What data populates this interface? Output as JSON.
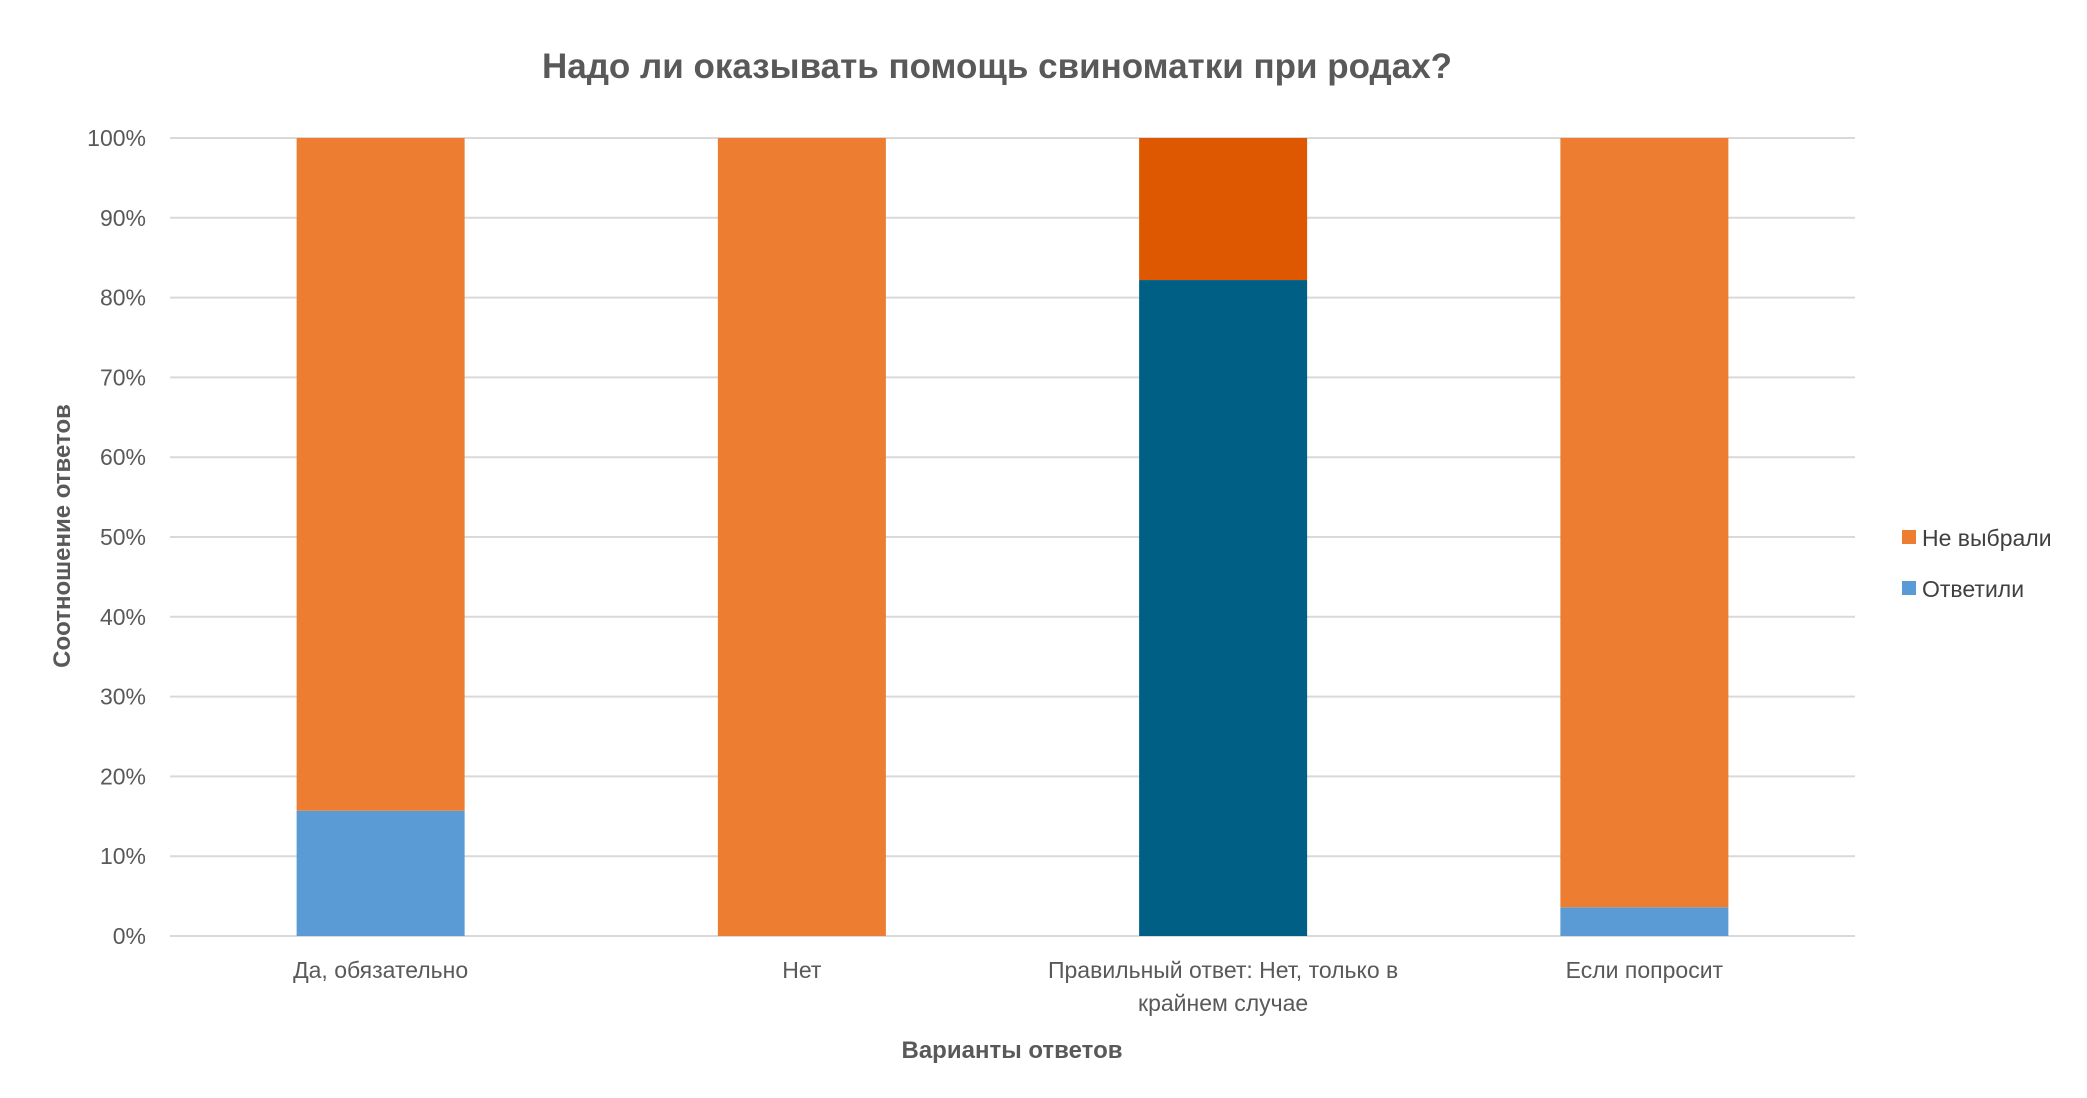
{
  "chart_data": {
    "type": "bar",
    "stacked": true,
    "title": "Надо ли оказывать помощь свиноматки при родах?",
    "xlabel": "Варианты ответов",
    "ylabel": "Соотношение ответов",
    "ylim": [
      0,
      100
    ],
    "y_unit": "%",
    "yticks": [
      "0%",
      "10%",
      "20%",
      "30%",
      "40%",
      "50%",
      "60%",
      "70%",
      "80%",
      "90%",
      "100%"
    ],
    "categories": [
      [
        "Да, обязательно"
      ],
      [
        "Нет"
      ],
      [
        "Правильный ответ: Нет, только в",
        "крайнем случае"
      ],
      [
        "Если попросит"
      ]
    ],
    "series": [
      {
        "name": "Ответили",
        "color": "#5b9bd5",
        "values": [
          15.7,
          0,
          82.2,
          3.6
        ],
        "point_colors": [
          "#5b9bd5",
          "#5b9bd5",
          "#005f84",
          "#5b9bd5"
        ]
      },
      {
        "name": "Не выбрали",
        "color": "#ed7d31",
        "values": [
          84.3,
          100,
          17.8,
          96.4
        ],
        "point_colors": [
          "#ed7d31",
          "#ed7d31",
          "#dd5800",
          "#ed7d31"
        ]
      }
    ],
    "grid": true,
    "legend": {
      "position": "right",
      "order": [
        "Не выбрали",
        "Ответили"
      ]
    }
  }
}
